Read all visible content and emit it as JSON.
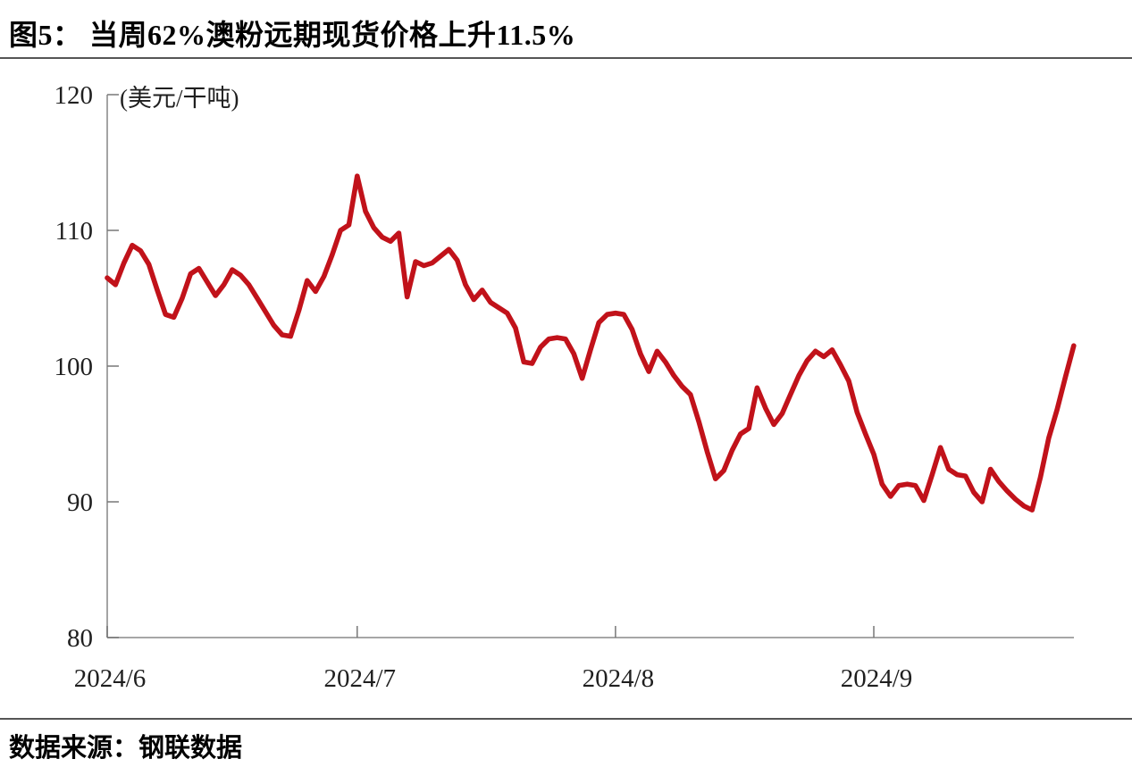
{
  "header": {
    "title": "图5： 当周62%澳粉远期现货价格上升11.5%"
  },
  "footer": {
    "source": "数据来源：钢联数据"
  },
  "chart_data": {
    "type": "line",
    "title": "当周62%澳粉远期现货价格上升11.5%",
    "figure_number": "图5",
    "unit_label": "(美元/干吨)",
    "ylim": [
      80,
      120
    ],
    "y_ticks": [
      120,
      110,
      100,
      90,
      80
    ],
    "x_ticks": [
      {
        "label": "2024/6",
        "date": "2024/6/1"
      },
      {
        "label": "2024/7",
        "date": "2024/7/1"
      },
      {
        "label": "2024/8",
        "date": "2024/8/1"
      },
      {
        "label": "2024/9",
        "date": "2024/9/1"
      }
    ],
    "grid": false,
    "legend": false,
    "line_color": "#c1121a",
    "axis_color": "#9a9a9a",
    "tick_color": "#777777",
    "label_color": "#1f1f1f",
    "series": [
      {
        "start_date": "2024/6/1",
        "frequency": "daily",
        "end_value": 101.5,
        "values": [
          106.5,
          106.0,
          107.6,
          108.9,
          108.5,
          107.5,
          105.6,
          103.8,
          103.6,
          105.0,
          106.8,
          107.2,
          106.2,
          105.2,
          106.0,
          107.1,
          106.7,
          106.0,
          105.0,
          104.0,
          103.0,
          102.3,
          102.2,
          104.1,
          106.3,
          105.5,
          106.6,
          108.2,
          110.0,
          110.4,
          114.0,
          111.4,
          110.2,
          109.5,
          109.2,
          109.8,
          105.1,
          107.7,
          107.4,
          107.6,
          108.1,
          108.6,
          107.8,
          106.0,
          104.9,
          105.6,
          104.7,
          104.3,
          103.9,
          102.8,
          100.3,
          100.2,
          101.4,
          102.0,
          102.1,
          102.0,
          100.9,
          99.1,
          101.2,
          103.2,
          103.8,
          103.9,
          103.8,
          102.7,
          100.9,
          99.6,
          101.1,
          100.3,
          99.3,
          98.5,
          97.9,
          95.9,
          93.7,
          91.7,
          92.3,
          93.8,
          95.0,
          95.4,
          98.4,
          96.9,
          95.7,
          96.5,
          97.9,
          99.3,
          100.4,
          101.1,
          100.7,
          101.2,
          100.1,
          98.9,
          96.6,
          95.0,
          93.5,
          91.3,
          90.4,
          91.2,
          91.3,
          91.2,
          90.1,
          92.0,
          94.0,
          92.4,
          92.0,
          91.9,
          90.7,
          90.0,
          92.4,
          91.5,
          90.8,
          90.2,
          89.7,
          89.4,
          91.8,
          94.7,
          96.8,
          99.2,
          101.5
        ]
      }
    ]
  }
}
